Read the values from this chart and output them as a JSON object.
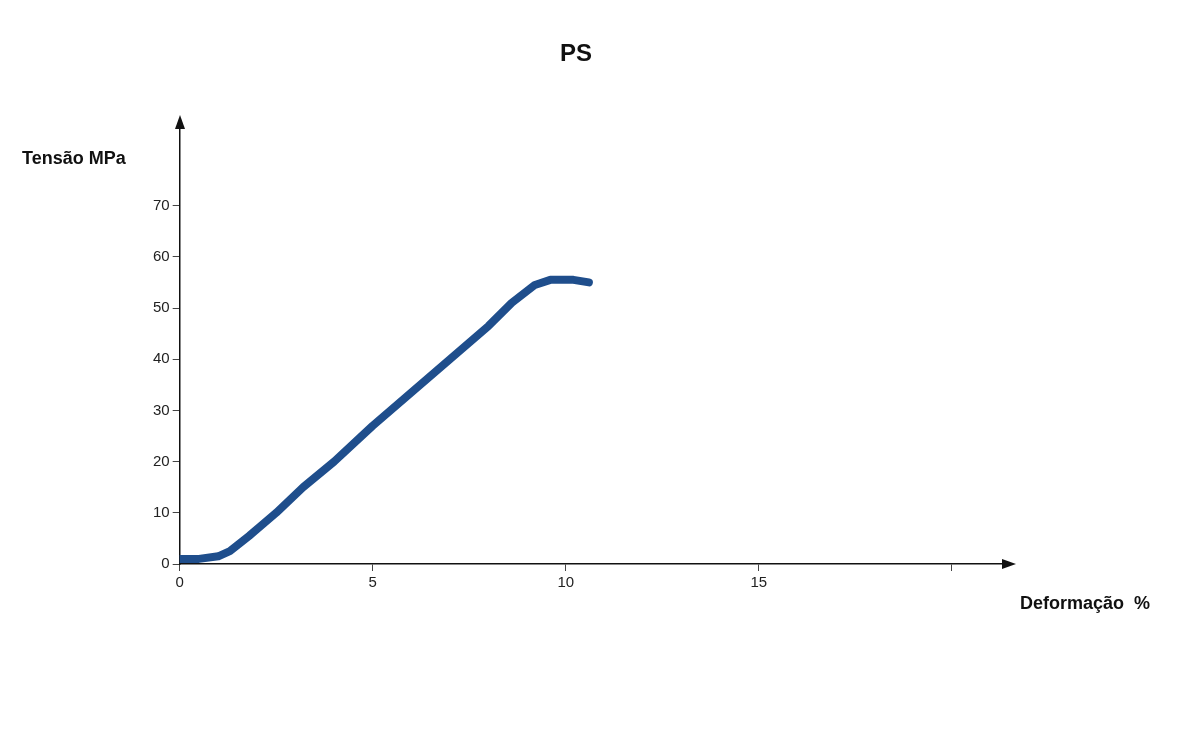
{
  "chart_data": {
    "type": "line",
    "title": "PS",
    "xlabel": "Deformação  %",
    "ylabel": "Tensão MPa",
    "x": [
      0,
      0.5,
      1,
      1.3,
      1.8,
      2.5,
      3.2,
      4,
      5,
      6,
      7,
      8,
      8.6,
      9.2,
      9.6,
      10.2,
      10.6
    ],
    "series": [
      {
        "color": "#1f4e8c",
        "values": [
          1,
          1,
          1.5,
          2.5,
          5.5,
          10,
          15,
          20,
          27,
          33.5,
          40,
          46.5,
          51,
          54.5,
          55.5,
          55.5,
          55
        ]
      }
    ],
    "xlim": [
      0,
      21.3
    ],
    "xticks": [
      0,
      5,
      10,
      15,
      {
        "value": 20,
        "label": null
      }
    ],
    "ylim": [
      0,
      85
    ],
    "yticks": [
      0,
      10,
      20,
      30,
      40,
      50,
      60,
      70
    ],
    "grid": false,
    "legend": false,
    "marker": "none",
    "line_style": "solid"
  }
}
